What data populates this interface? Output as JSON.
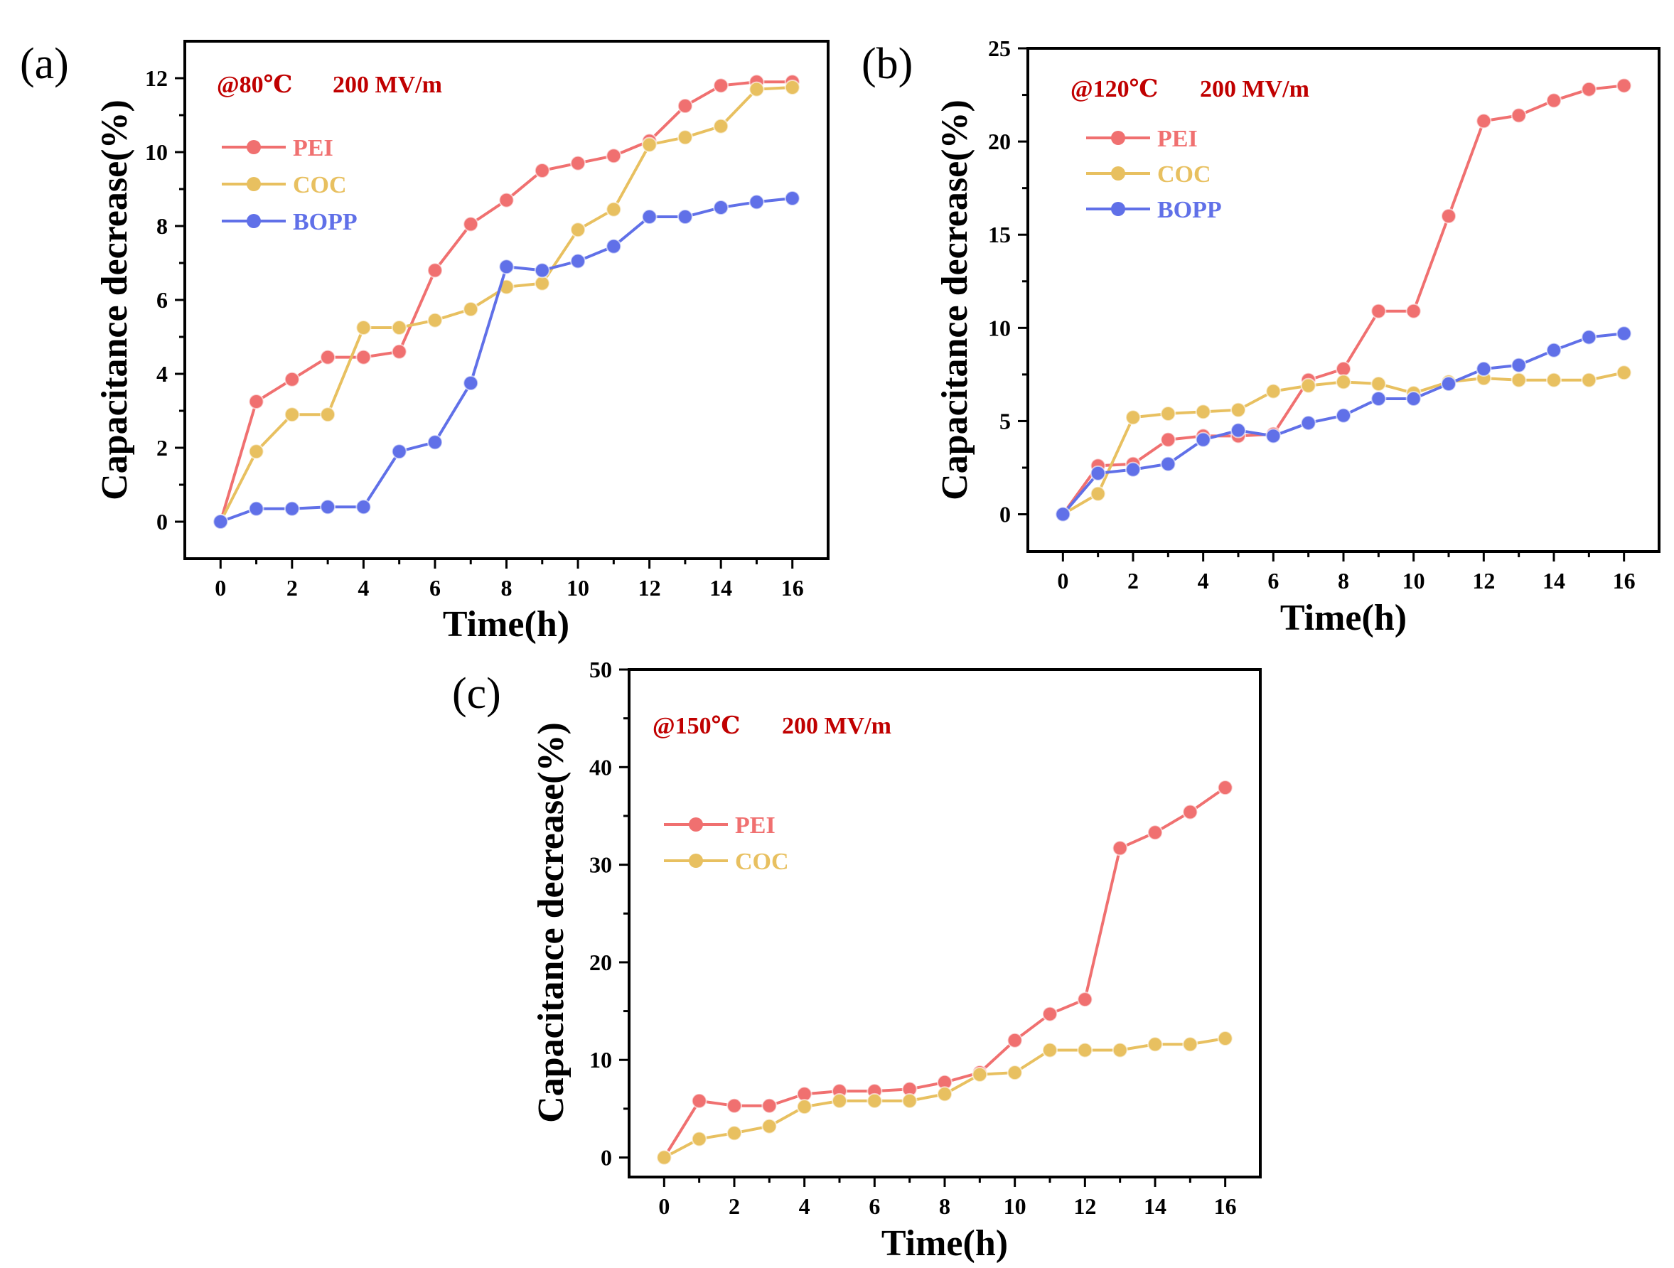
{
  "figure": {
    "panels": [
      {
        "id": "a",
        "label": "(a)",
        "annotation_temp": "@80℃",
        "annotation_field": "200 MV/m"
      },
      {
        "id": "b",
        "label": "(b)",
        "annotation_temp": "@120℃",
        "annotation_field": "200 MV/m"
      },
      {
        "id": "c",
        "label": "(c)",
        "annotation_temp": "@150℃",
        "annotation_field": "200 MV/m"
      }
    ]
  },
  "colors": {
    "PEI": "#f07070",
    "COC": "#e8c060",
    "BOPP": "#6070e8",
    "annotation": "#c00000",
    "axis": "#000000"
  },
  "chart_data": [
    {
      "id": "a",
      "type": "line",
      "title": "",
      "xlabel": "Time(h)",
      "ylabel": "Capacitance decrease(%)",
      "xlim": [
        -1,
        17
      ],
      "ylim": [
        -1,
        13
      ],
      "xticks": [
        0,
        2,
        4,
        6,
        8,
        10,
        12,
        14,
        16
      ],
      "yticks": [
        0,
        2,
        4,
        6,
        8,
        10,
        12
      ],
      "legend_position": "upper-left",
      "x": [
        0,
        1,
        2,
        3,
        4,
        5,
        6,
        7,
        8,
        9,
        10,
        11,
        12,
        13,
        14,
        15,
        16
      ],
      "series": [
        {
          "name": "PEI",
          "values": [
            0,
            3.25,
            3.85,
            4.45,
            4.45,
            4.6,
            6.8,
            8.05,
            8.7,
            9.5,
            9.7,
            9.9,
            10.3,
            11.25,
            11.8,
            11.9,
            11.9
          ]
        },
        {
          "name": "COC",
          "values": [
            0,
            1.9,
            2.9,
            2.9,
            5.25,
            5.25,
            5.45,
            5.75,
            6.35,
            6.45,
            7.9,
            8.45,
            10.2,
            10.4,
            10.7,
            11.7,
            11.75
          ]
        },
        {
          "name": "BOPP",
          "values": [
            0,
            0.35,
            0.35,
            0.4,
            0.4,
            1.9,
            2.15,
            3.75,
            6.9,
            6.8,
            7.05,
            7.45,
            8.25,
            8.25,
            8.5,
            8.65,
            8.75
          ]
        }
      ]
    },
    {
      "id": "b",
      "type": "line",
      "title": "",
      "xlabel": "Time(h)",
      "ylabel": "Capacitance decrease(%)",
      "xlim": [
        -1,
        17
      ],
      "ylim": [
        -2,
        25
      ],
      "xticks": [
        0,
        2,
        4,
        6,
        8,
        10,
        12,
        14,
        16
      ],
      "yticks": [
        0,
        5,
        10,
        15,
        20,
        25
      ],
      "legend_position": "upper-left",
      "x": [
        0,
        1,
        2,
        3,
        4,
        5,
        6,
        7,
        8,
        9,
        10,
        11,
        12,
        13,
        14,
        15,
        16
      ],
      "series": [
        {
          "name": "PEI",
          "values": [
            0,
            2.6,
            2.7,
            4.0,
            4.2,
            4.2,
            4.3,
            7.2,
            7.8,
            10.9,
            10.9,
            16.0,
            21.1,
            21.4,
            22.2,
            22.8,
            23.0
          ]
        },
        {
          "name": "COC",
          "values": [
            0,
            1.1,
            5.2,
            5.4,
            5.5,
            5.6,
            6.6,
            6.9,
            7.1,
            7.0,
            6.5,
            7.1,
            7.3,
            7.2,
            7.2,
            7.2,
            7.6
          ]
        },
        {
          "name": "BOPP",
          "values": [
            0,
            2.2,
            2.4,
            2.7,
            4.0,
            4.5,
            4.2,
            4.9,
            5.3,
            6.2,
            6.2,
            7.0,
            7.8,
            8.0,
            8.8,
            9.5,
            9.7
          ]
        }
      ]
    },
    {
      "id": "c",
      "type": "line",
      "title": "",
      "xlabel": "Time(h)",
      "ylabel": "Capacitance decrease(%)",
      "xlim": [
        -1,
        17
      ],
      "ylim": [
        -2,
        50
      ],
      "xticks": [
        0,
        2,
        4,
        6,
        8,
        10,
        12,
        14,
        16
      ],
      "yticks": [
        0,
        10,
        20,
        30,
        40,
        50
      ],
      "legend_position": "middle-left",
      "x": [
        0,
        1,
        2,
        3,
        4,
        5,
        6,
        7,
        8,
        9,
        10,
        11,
        12,
        13,
        14,
        15,
        16
      ],
      "series": [
        {
          "name": "PEI",
          "values": [
            0,
            5.8,
            5.3,
            5.3,
            6.5,
            6.8,
            6.8,
            7.0,
            7.7,
            8.7,
            12.0,
            14.7,
            16.2,
            31.7,
            33.3,
            35.4,
            37.9
          ]
        },
        {
          "name": "COC",
          "values": [
            0,
            1.9,
            2.5,
            3.2,
            5.2,
            5.8,
            5.8,
            5.8,
            6.5,
            8.5,
            8.7,
            11.0,
            11.0,
            11.0,
            11.6,
            11.6,
            12.2
          ]
        }
      ]
    }
  ]
}
